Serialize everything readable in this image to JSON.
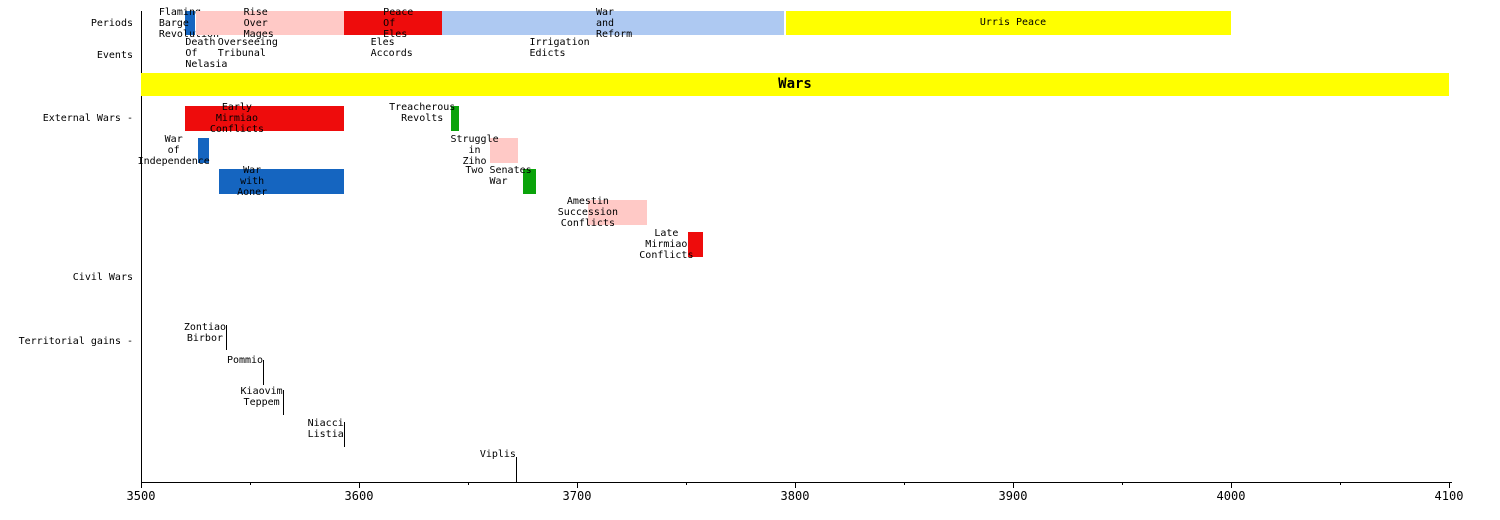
{
  "chart_data": {
    "type": "bar",
    "subtype": "gantt-timeline",
    "title": "",
    "x_axis": {
      "min": 3500,
      "max": 4100,
      "major_step": 100,
      "minor_step": 50,
      "tick_labels": [
        "3500",
        "3600",
        "3700",
        "3800",
        "3900",
        "4000",
        "4100"
      ]
    },
    "grid": false,
    "legend": false,
    "row_labels": [
      "Periods",
      "Events",
      "External Wars -",
      "Civil Wars",
      "Territorial gains -"
    ],
    "palette": {
      "blue": "#1565c0",
      "pink": "#ffc9c6",
      "red": "#ee0c0c",
      "lightblue": "#aec9f2",
      "yellow": "#ffff00",
      "green": "#0aa30a"
    },
    "periods": [
      {
        "label": "Flaming Barge Revolution",
        "lines": [
          "Flaming",
          "Barge",
          "Revolution"
        ],
        "start": 3520,
        "end": 3525,
        "color": "blue",
        "label_year": 3522
      },
      {
        "label": "Rise Over Mages",
        "lines": [
          "Rise",
          "Over",
          "Mages"
        ],
        "start": 3525,
        "end": 3593,
        "color": "pink",
        "label_year": 3554
      },
      {
        "label": "Peace Of Eles",
        "lines": [
          "Peace",
          "Of",
          "Eles"
        ],
        "start": 3593,
        "end": 3638,
        "color": "red",
        "label_year": 3618
      },
      {
        "label": "War and Reform",
        "lines": [
          "War",
          "and",
          "Reform"
        ],
        "start": 3638,
        "end": 3795,
        "color": "lightblue",
        "label_year": 3717
      },
      {
        "label": "Urris Peace",
        "lines": [
          "Urris Peace"
        ],
        "start": 3796,
        "end": 4000,
        "color": "yellow",
        "label_year": 3900
      }
    ],
    "events": [
      {
        "label": "Death Of Nelasia",
        "lines": [
          "Death",
          "Of",
          "Nelasia"
        ],
        "year": 3530
      },
      {
        "label": "Overseeing Tribunal",
        "lines": [
          "Overseeing",
          "Tribunal"
        ],
        "year": 3549
      },
      {
        "label": "Eles Accords",
        "lines": [
          "Eles",
          "Accords"
        ],
        "year": 3615
      },
      {
        "label": "Irrigation Edicts",
        "lines": [
          "Irrigation",
          "Edicts"
        ],
        "year": 3692
      }
    ],
    "wars_band": {
      "label": "Wars",
      "start": 3500,
      "end": 4100,
      "color": "yellow"
    },
    "external_wars": [
      {
        "label": "Early Mirmiao Conflicts",
        "lines": [
          "Early",
          "Mirmiao",
          "Conflicts"
        ],
        "start": 3520,
        "end": 3593,
        "color": "red",
        "row": 0,
        "label_year": 3544
      },
      {
        "label": "Treacherous Revolts",
        "lines": [
          "Treacherous",
          "Revolts"
        ],
        "start": 3642,
        "end": 3646,
        "color": "green",
        "row": 0,
        "label_year": 3629
      },
      {
        "label": "War of Independence",
        "lines": [
          "War",
          "of",
          "Independence"
        ],
        "start": 3526,
        "end": 3531,
        "color": "blue",
        "row": 1,
        "label_year": 3515
      },
      {
        "label": "Struggle in Ziho",
        "lines": [
          "Struggle",
          "in",
          "Ziho"
        ],
        "start": 3660,
        "end": 3673,
        "color": "pink",
        "row": 1,
        "label_year": 3653
      },
      {
        "label": "War with Aoner",
        "lines": [
          "War",
          "with",
          "Aoner"
        ],
        "start": 3536,
        "end": 3593,
        "color": "blue",
        "row": 2,
        "label_year": 3551
      },
      {
        "label": "Two Senates War",
        "lines": [
          "Two Senates",
          "War"
        ],
        "start": 3675,
        "end": 3681,
        "color": "green",
        "row": 2,
        "label_year": 3664
      },
      {
        "label": "Amestin Succession Conflicts",
        "lines": [
          "Amestin",
          "Succession",
          "Conflicts"
        ],
        "start": 3705,
        "end": 3732,
        "color": "pink",
        "row": 3,
        "label_year": 3705
      },
      {
        "label": "Late Mirmiao Conflicts",
        "lines": [
          "Late",
          "Mirmiao",
          "Conflicts"
        ],
        "start": 3751,
        "end": 3758,
        "color": "red",
        "row": 4,
        "label_year": 3741
      }
    ],
    "civil_wars": [],
    "territorial_gains": [
      {
        "label": "Zontiao Birbor",
        "lines": [
          "Zontiao",
          "Birbor"
        ],
        "year": 3539
      },
      {
        "label": "Pommio",
        "lines": [
          "Pommio"
        ],
        "year": 3556
      },
      {
        "label": "Kiaovim Teppem",
        "lines": [
          "Kiaovim",
          "Teppem"
        ],
        "year": 3565
      },
      {
        "label": "Niacci Listia",
        "lines": [
          "Niacci",
          "Listia"
        ],
        "year": 3593
      },
      {
        "label": "Viplis",
        "lines": [
          "Viplis"
        ],
        "year": 3672
      }
    ]
  }
}
